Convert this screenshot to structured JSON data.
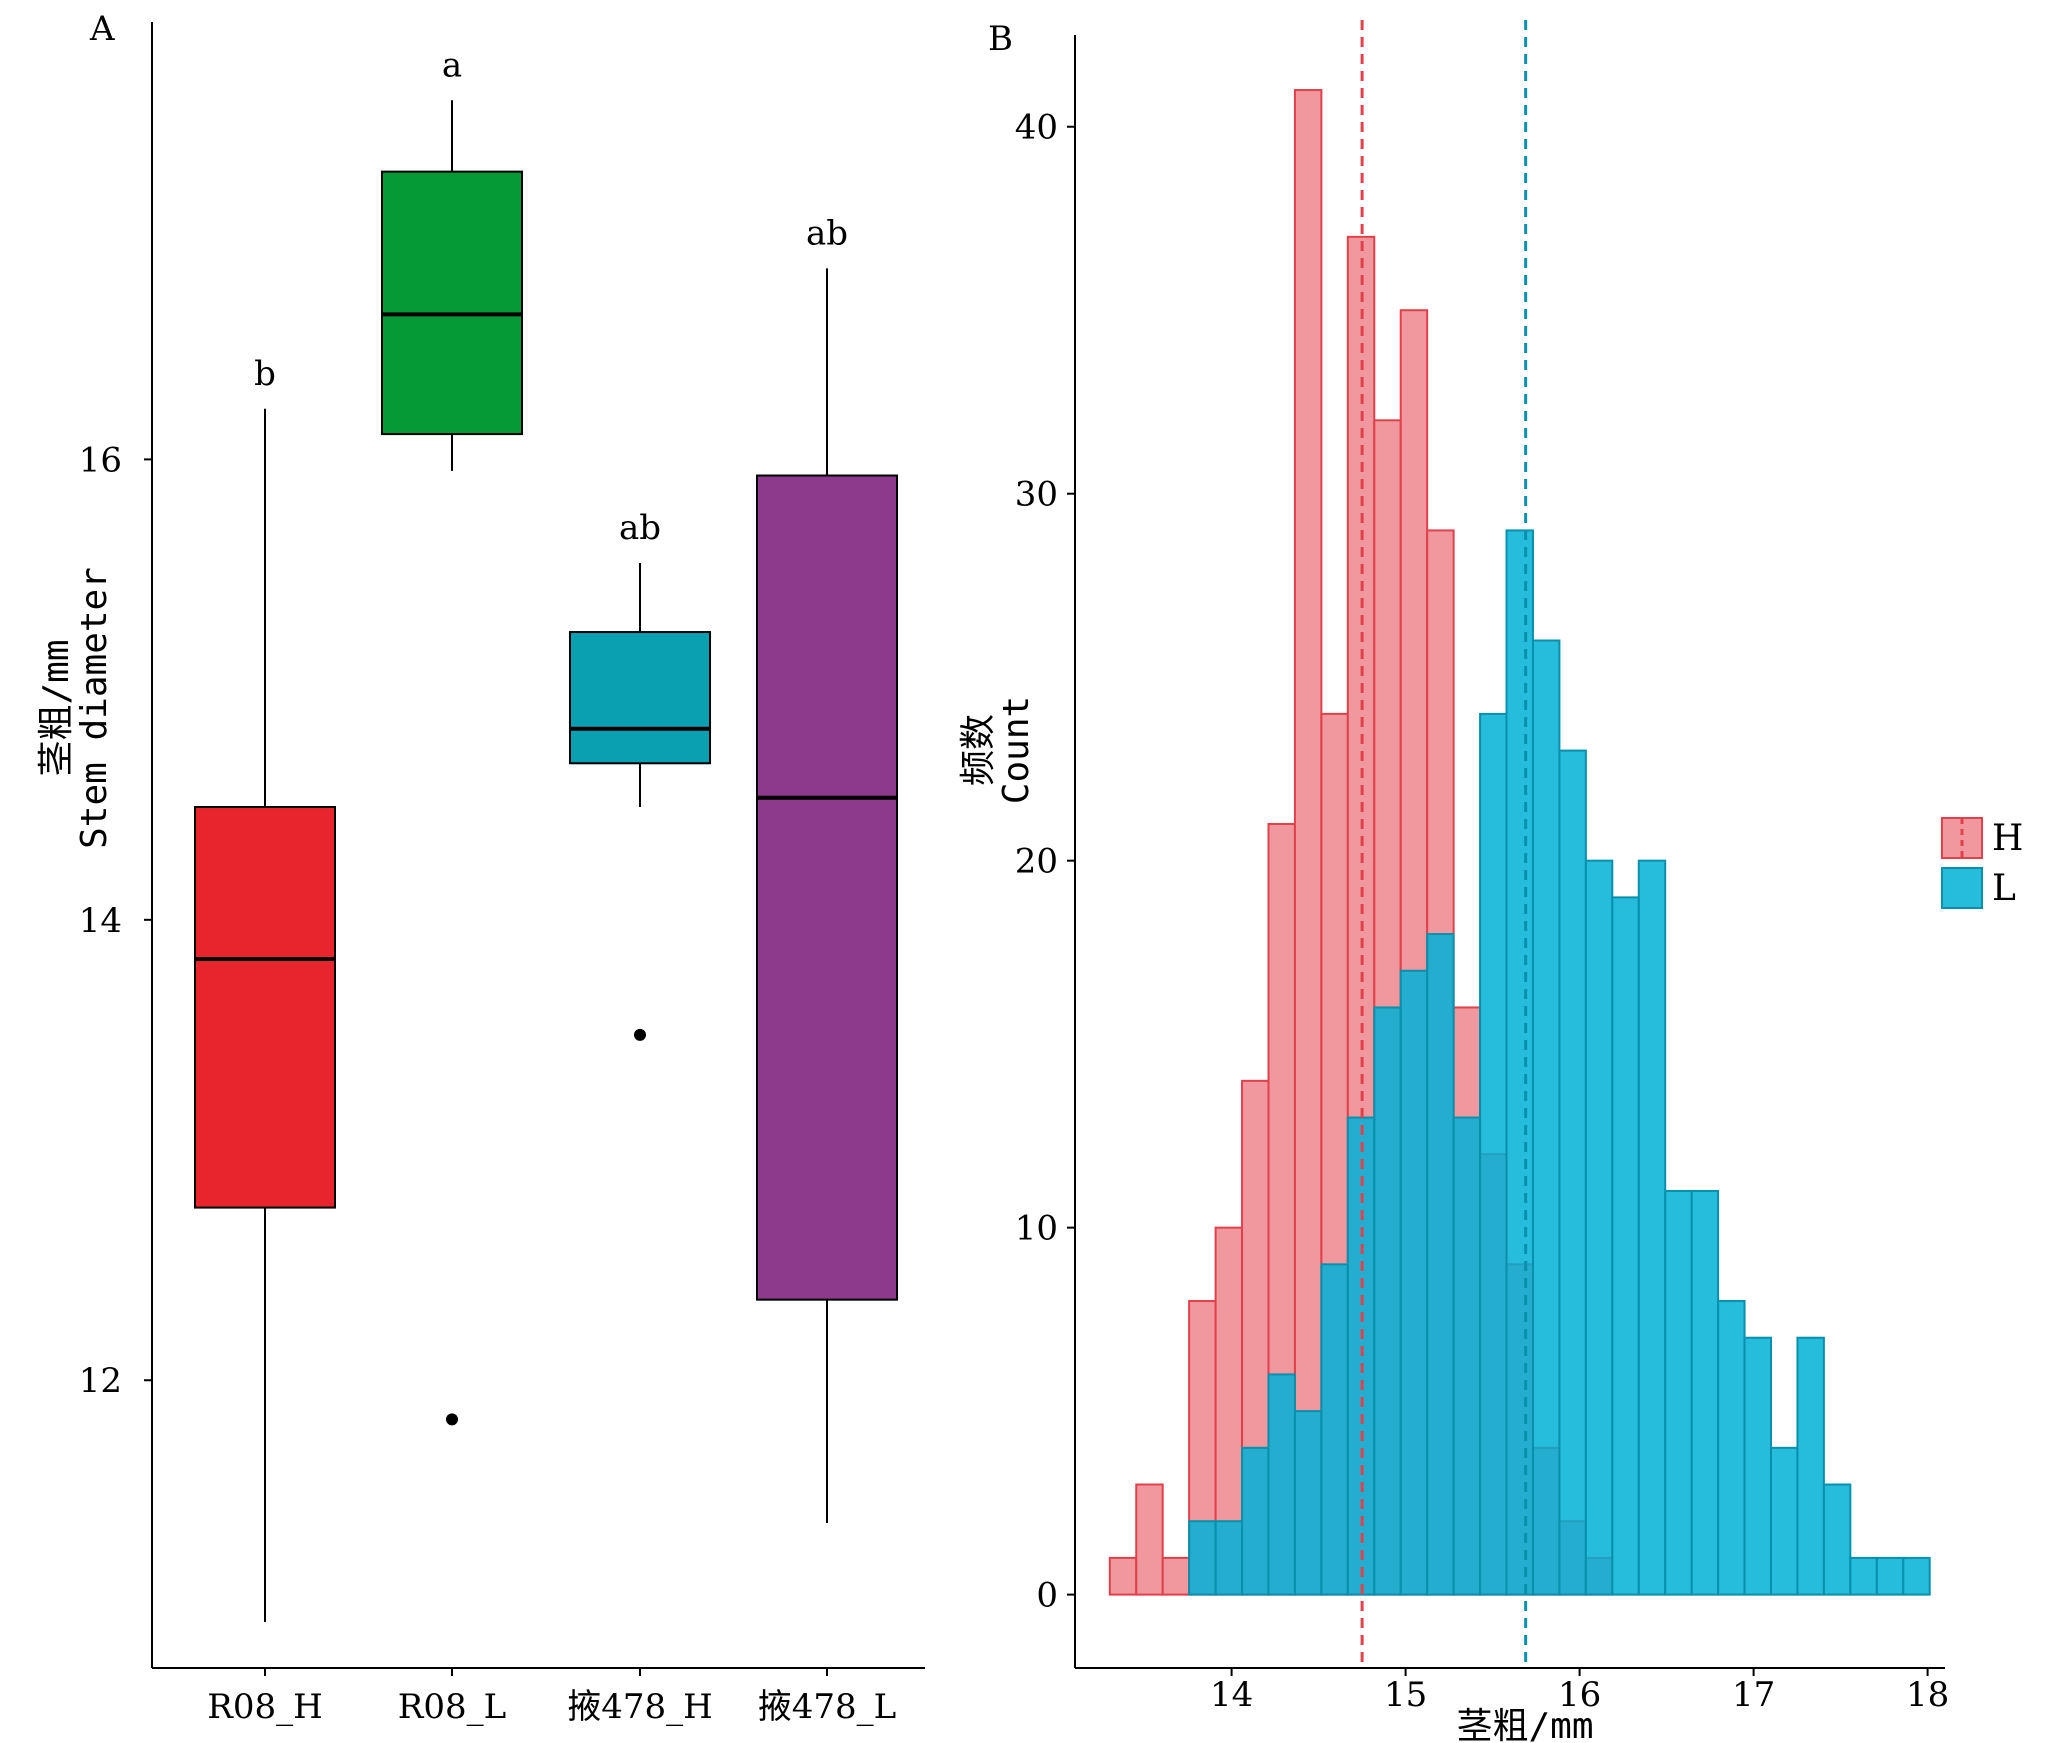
{
  "chart_data": [
    {
      "type": "box",
      "panel_label": "A",
      "ylabel_cn": "茎粗/mm",
      "ylabel_en": "Stem diameter",
      "xlabel": "",
      "ylim": [
        10.75,
        17.9
      ],
      "yticks": [
        12,
        14,
        16
      ],
      "grid": false,
      "categories": [
        "R08_H",
        "R08_L",
        "掖478_H",
        "掖478_L"
      ],
      "boxes": [
        {
          "name": "R08_H",
          "color": "#E8242D",
          "whisker_low": 10.95,
          "q1": 12.75,
          "median": 13.83,
          "q3": 14.49,
          "whisker_high": 16.22,
          "outliers": [],
          "letter": "b"
        },
        {
          "name": "R08_L",
          "color": "#069A37",
          "whisker_low": 15.95,
          "q1": 16.11,
          "median": 16.63,
          "q3": 17.25,
          "whisker_high": 17.56,
          "outliers": [
            11.83
          ],
          "letter": "a"
        },
        {
          "name": "掖478_H",
          "color": "#09A0B2",
          "whisker_low": 14.49,
          "q1": 14.68,
          "median": 14.83,
          "q3": 15.25,
          "whisker_high": 15.55,
          "outliers": [
            13.5
          ],
          "letter": "ab"
        },
        {
          "name": "掖478_L",
          "color": "#8D3A8C",
          "whisker_low": 11.38,
          "q1": 12.35,
          "median": 14.53,
          "q3": 15.93,
          "whisker_high": 16.83,
          "outliers": [],
          "letter": "ab"
        }
      ]
    },
    {
      "type": "histogram",
      "panel_label": "B",
      "ylabel_cn": "频数",
      "ylabel_en": "Count",
      "xlabel": "茎粗/mm",
      "xlim": [
        13.1,
        18.1
      ],
      "ylim": [
        -2,
        42.5
      ],
      "xticks": [
        14,
        15,
        16,
        17,
        18
      ],
      "yticks": [
        0,
        10,
        20,
        30,
        40
      ],
      "grid": false,
      "bin_start": 13.3,
      "bin_width": 0.152,
      "legend": {
        "position": "right",
        "entries": [
          "H",
          "L"
        ]
      },
      "series": [
        {
          "name": "H",
          "color": "#F08C93",
          "edge": "#E0414B",
          "mean": 14.75,
          "counts": [
            1,
            3,
            1,
            8,
            10,
            14,
            21,
            41,
            24,
            37,
            32,
            35,
            29,
            16,
            12,
            9,
            4,
            2,
            1,
            0,
            0,
            0,
            0,
            0,
            0,
            0,
            0,
            0,
            0,
            0,
            0,
            0,
            0,
            0,
            0,
            0,
            0,
            0,
            0
          ]
        },
        {
          "name": "L",
          "color": "#00B0D6",
          "edge": "#0890AC",
          "mean": 15.69,
          "counts": [
            0,
            0,
            0,
            2,
            2,
            4,
            6,
            5,
            9,
            13,
            16,
            17,
            18,
            13,
            24,
            29,
            26,
            23,
            20,
            19,
            20,
            11,
            11,
            8,
            7,
            4,
            7,
            3,
            1,
            1,
            1
          ]
        }
      ]
    }
  ]
}
